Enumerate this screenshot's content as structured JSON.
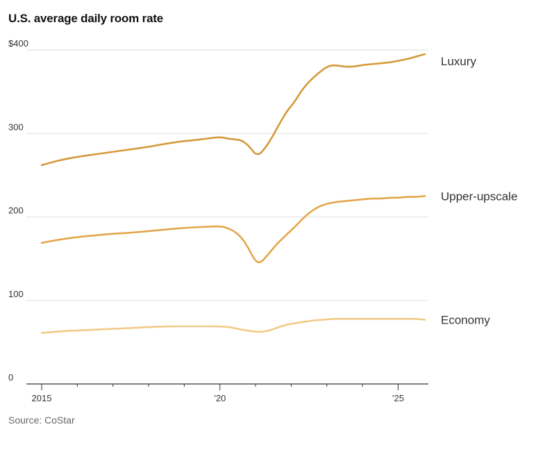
{
  "chart_data": {
    "type": "line",
    "title": "U.S. average daily room rate",
    "source": "Source: CoStar",
    "y_prefix": "$",
    "ylim": [
      0,
      400
    ],
    "y_ticks": [
      0,
      100,
      200,
      300,
      400
    ],
    "y_tick_labels": [
      "0",
      "100",
      "200",
      "300",
      "$400"
    ],
    "xlim": [
      2015.0,
      2025.75
    ],
    "x_ticks": [
      2015,
      2020,
      2025
    ],
    "x_tick_labels": [
      "2015",
      "’20",
      "’25"
    ],
    "grid": true,
    "colors": {
      "luxury": "#d5993a",
      "upper_upscale": "#e3a64a",
      "economy": "#f2ca86",
      "grid": "#dddddd",
      "axis": "#333333"
    },
    "series": [
      {
        "name": "Luxury",
        "x": [
          2015.0,
          2015.5,
          2016.0,
          2016.5,
          2017.0,
          2017.5,
          2018.0,
          2018.5,
          2019.0,
          2019.5,
          2020.0,
          2020.2,
          2020.4,
          2020.6,
          2020.8,
          2021.05,
          2021.3,
          2021.5,
          2021.7,
          2021.9,
          2022.1,
          2022.3,
          2022.5,
          2022.75,
          2023.0,
          2023.2,
          2023.5,
          2023.75,
          2024.0,
          2024.25,
          2024.5,
          2024.75,
          2025.0,
          2025.25,
          2025.5,
          2025.75
        ],
        "values": [
          262,
          268,
          272,
          275,
          278,
          281,
          284,
          288,
          291,
          293,
          296,
          294,
          293,
          292,
          286,
          272,
          284,
          298,
          314,
          328,
          338,
          352,
          362,
          372,
          380,
          382,
          380,
          380,
          382,
          383,
          384,
          385,
          387,
          389,
          392,
          395
        ]
      },
      {
        "name": "Upper-upscale",
        "x": [
          2015.0,
          2015.5,
          2016.0,
          2016.5,
          2017.0,
          2017.5,
          2018.0,
          2018.5,
          2019.0,
          2019.5,
          2020.0,
          2020.2,
          2020.4,
          2020.6,
          2020.8,
          2020.95,
          2021.1,
          2021.3,
          2021.5,
          2021.7,
          2021.9,
          2022.1,
          2022.3,
          2022.5,
          2022.75,
          2023.0,
          2023.25,
          2023.5,
          2023.75,
          2024.0,
          2024.25,
          2024.5,
          2024.75,
          2025.0,
          2025.25,
          2025.5,
          2025.75
        ],
        "values": [
          169,
          173,
          176,
          178,
          180,
          181,
          183,
          185,
          187,
          188,
          189,
          187,
          183,
          176,
          163,
          150,
          144,
          152,
          163,
          172,
          180,
          188,
          197,
          205,
          212,
          216,
          218,
          219,
          220,
          221,
          222,
          222,
          223,
          223,
          224,
          224,
          225
        ]
      },
      {
        "name": "Economy",
        "x": [
          2015.0,
          2015.5,
          2016.0,
          2016.5,
          2017.0,
          2017.5,
          2018.0,
          2018.5,
          2019.0,
          2019.5,
          2020.0,
          2020.3,
          2020.6,
          2020.9,
          2021.15,
          2021.4,
          2021.7,
          2022.0,
          2022.3,
          2022.6,
          2022.9,
          2023.2,
          2023.5,
          2023.8,
          2024.1,
          2024.4,
          2024.7,
          2025.0,
          2025.25,
          2025.5,
          2025.75
        ],
        "values": [
          61,
          63,
          64,
          65,
          66,
          67,
          68,
          69,
          69,
          69,
          69,
          68,
          65,
          63,
          62,
          64,
          69,
          72,
          74,
          76,
          77,
          78,
          78,
          78,
          78,
          78,
          78,
          78,
          78,
          78,
          77
        ]
      }
    ]
  }
}
